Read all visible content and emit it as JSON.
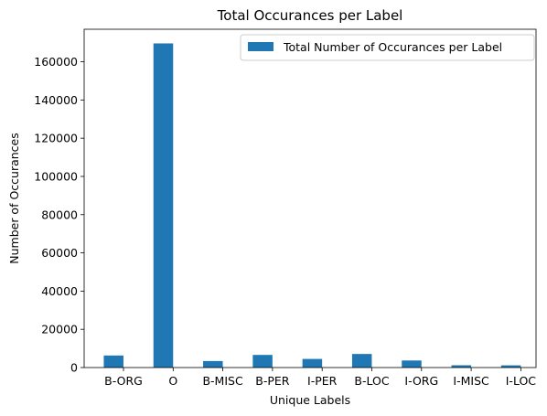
{
  "chart_data": {
    "type": "bar",
    "title": "Total Occurances per Label",
    "xlabel": "Unique Labels",
    "ylabel": "Number of Occurances",
    "categories": [
      "B-ORG",
      "O",
      "B-MISC",
      "B-PER",
      "I-PER",
      "B-LOC",
      "I-ORG",
      "I-MISC",
      "I-LOC"
    ],
    "series": [
      {
        "name": "Total Number of Occurances per Label",
        "values": [
          6300,
          169600,
          3400,
          6600,
          4500,
          7100,
          3700,
          1200,
          1150
        ]
      }
    ],
    "ylim": [
      0,
      177000
    ],
    "yticks": [
      0,
      20000,
      40000,
      60000,
      80000,
      100000,
      120000,
      140000,
      160000
    ],
    "grid": false,
    "legend_position": "top-right",
    "colors": {
      "bar": "#1f77b4",
      "axes": "#000000",
      "legend_frame": "#cccccc"
    }
  }
}
